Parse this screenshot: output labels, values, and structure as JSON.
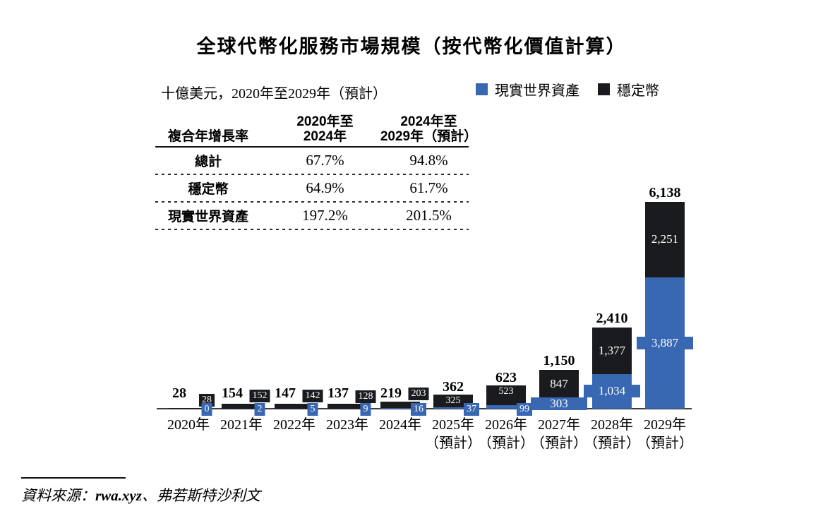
{
  "title": "全球代幣化服務市場規模（按代幣化價值計算）",
  "subtitle": "十億美元，2020年至2029年（預計）",
  "legend": {
    "items": [
      {
        "label": "現實世界資產",
        "color": "#3968b3"
      },
      {
        "label": "穩定幣",
        "color": "#1a1b1f"
      }
    ]
  },
  "cagr_table": {
    "col1_header": "複合年增長率",
    "col2_header_line1": "2020年至",
    "col2_header_line2": "2024年",
    "col3_header_line1": "2024年至",
    "col3_header_line2": "2029年（預計）",
    "rows": [
      {
        "label": "總計",
        "cagr_2020_2024": "67.7%",
        "cagr_2024_2029": "94.8%"
      },
      {
        "label": "穩定幣",
        "cagr_2020_2024": "64.9%",
        "cagr_2024_2029": "61.7%"
      },
      {
        "label": "現實世界資產",
        "cagr_2020_2024": "197.2%",
        "cagr_2024_2029": "201.5%"
      }
    ]
  },
  "chart_data": {
    "type": "bar",
    "stacked": true,
    "unit": "十億美元",
    "ylim": [
      0,
      6500
    ],
    "grid": false,
    "legend_position": "top-right",
    "categories": [
      "2020年",
      "2021年",
      "2022年",
      "2023年",
      "2024年",
      "2025年（預計）",
      "2026年（預計）",
      "2027年（預計）",
      "2028年（預計）",
      "2029年（預計）"
    ],
    "series": [
      {
        "name": "現實世界資產",
        "color": "#3968b3",
        "values": [
          0,
          2,
          5,
          9,
          16,
          37,
          99,
          303,
          1034,
          3887
        ],
        "labels": [
          "0",
          "2",
          "5",
          "9",
          "16",
          "37",
          "99",
          "303",
          "1,034",
          "3,887"
        ]
      },
      {
        "name": "穩定幣",
        "color": "#1a1b1f",
        "values": [
          28,
          152,
          142,
          128,
          203,
          325,
          523,
          847,
          1377,
          2251
        ],
        "labels": [
          "28",
          "152",
          "142",
          "128",
          "203",
          "325",
          "523",
          "847",
          "1,377",
          "2,251"
        ]
      }
    ],
    "totals": [
      28,
      154,
      147,
      137,
      219,
      362,
      623,
      1150,
      2410,
      6138
    ],
    "total_labels": [
      "28",
      "154",
      "147",
      "137",
      "219",
      "362",
      "623",
      "1,150",
      "2,410",
      "6,138"
    ],
    "label_styles": [
      "side",
      "side",
      "side",
      "side",
      "side",
      "topchip",
      "topchip",
      "inside",
      "inside",
      "inside"
    ]
  },
  "source": {
    "prefix": "資料來源：",
    "link": "rwa.xyz",
    "suffix": "、弗若斯特沙利文"
  }
}
